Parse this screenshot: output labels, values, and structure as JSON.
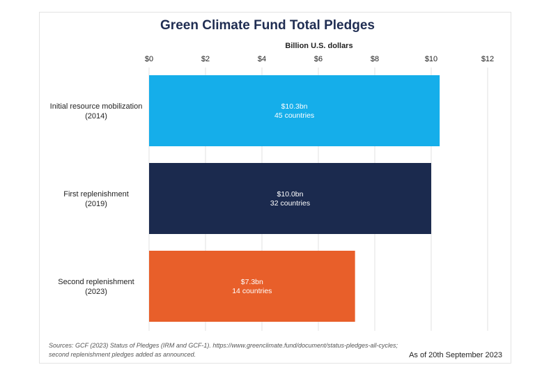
{
  "chart_data": {
    "type": "bar",
    "orientation": "horizontal",
    "title": "Green Climate Fund Total Pledges",
    "xlabel": "Billion U.S. dollars",
    "xlim": [
      0,
      12
    ],
    "x_ticks": [
      "$0",
      "$2",
      "$4",
      "$6",
      "$8",
      "$10",
      "$12"
    ],
    "grid": true,
    "categories": [
      [
        "Initial resource mobilization",
        "(2014)"
      ],
      [
        "First replenishment",
        "(2019)"
      ],
      [
        "Second replenishment",
        "(2023)"
      ]
    ],
    "values": [
      10.3,
      10.0,
      7.3
    ],
    "bar_labels": [
      [
        "$10.3bn",
        "45 countries"
      ],
      [
        "$10.0bn",
        "32 countries"
      ],
      [
        "$7.3bn",
        "14 countries"
      ]
    ],
    "colors": [
      "#15aeea",
      "#1b2a4e",
      "#e85f2a"
    ]
  },
  "footer": {
    "source_line1": "Sources: GCF (2023) Status of Pledges (IRM and GCF-1). https://www.greenclimate.fund/document/status-pledges-all-cycles;",
    "source_line2": "second replenishment pledges added as announced.",
    "as_of": "As of 20th September 2023"
  }
}
